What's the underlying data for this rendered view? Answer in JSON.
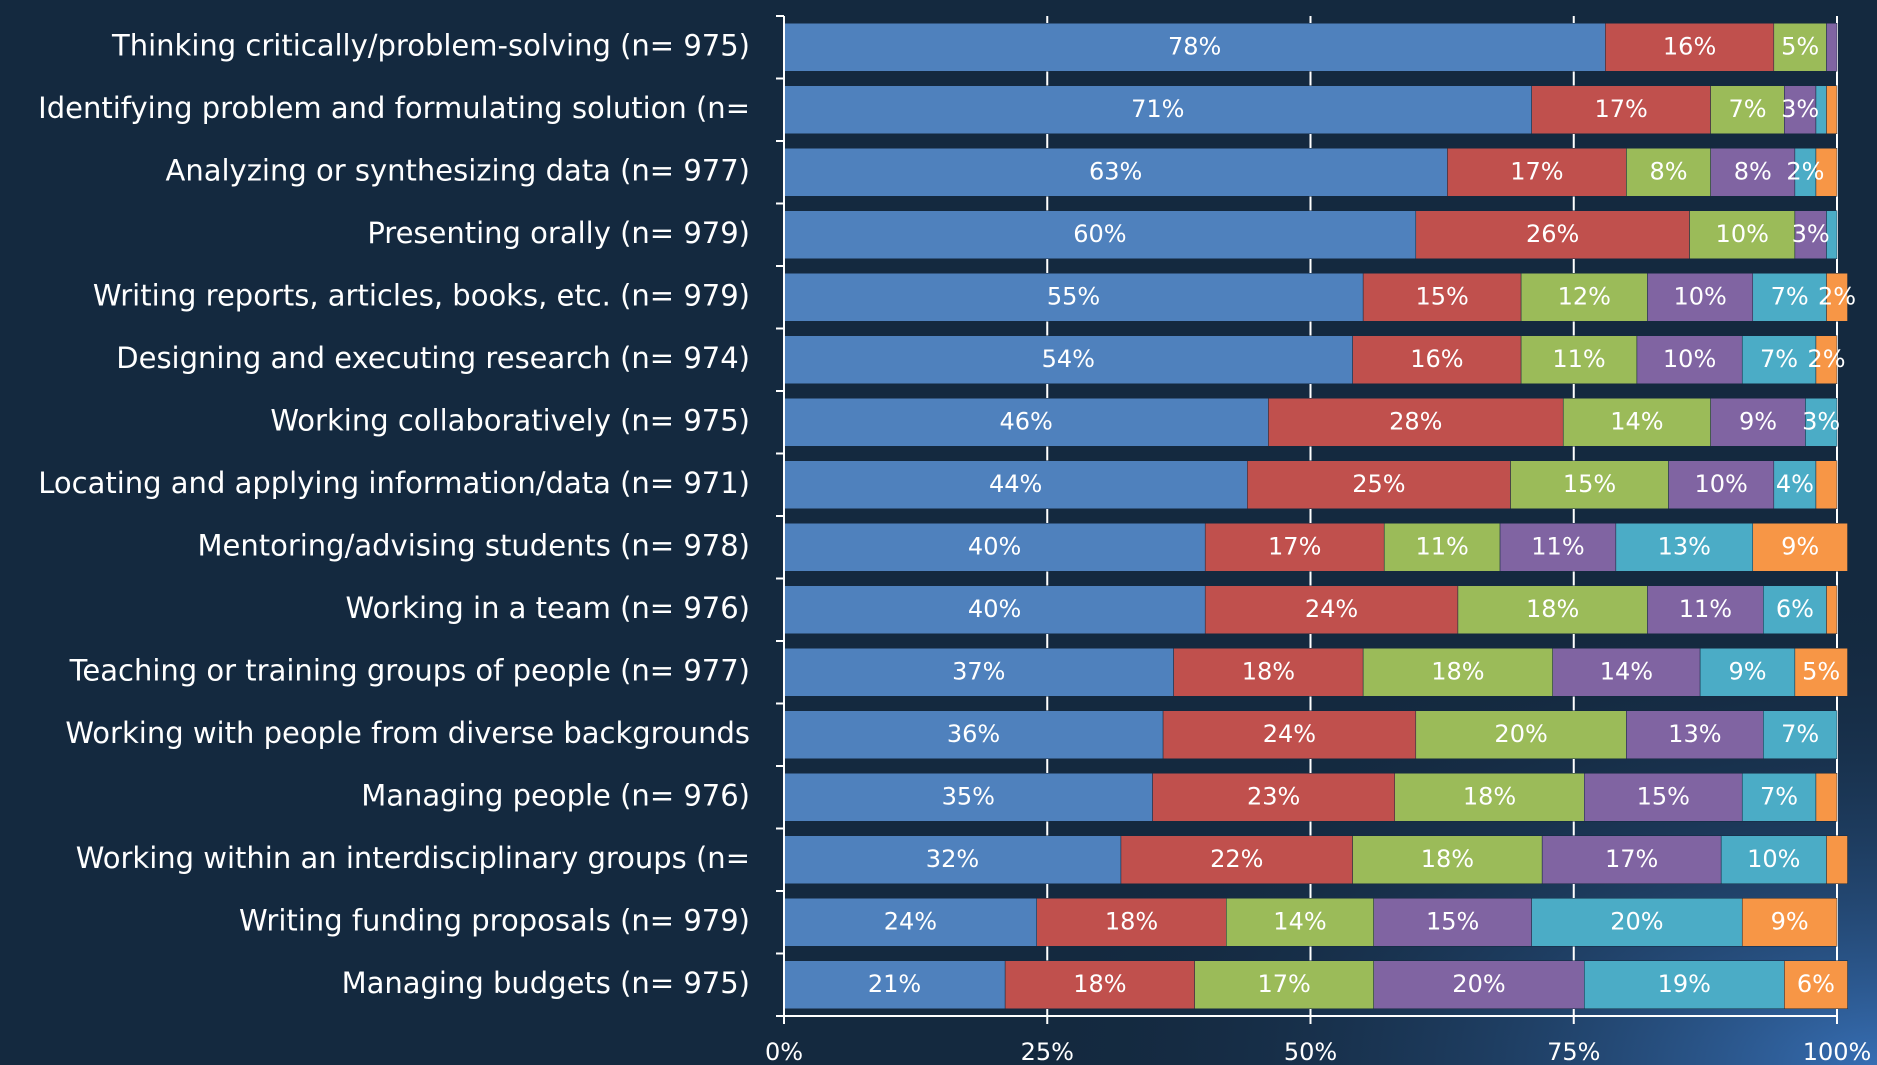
{
  "chart_data": {
    "type": "stacked-bar-horizontal",
    "categories": [
      "Thinking critically/problem-solving (n= 975)",
      "Identifying problem and formulating solution (n=",
      "Analyzing or synthesizing data (n= 977)",
      "Presenting orally (n= 979)",
      "Writing reports, articles, books, etc. (n= 979)",
      "Designing and executing research (n= 974)",
      "Working collaboratively (n= 975)",
      "Locating and applying information/data (n= 971)",
      "Mentoring/advising students (n= 978)",
      "Working in a team (n= 976)",
      "Teaching or training groups of people (n= 977)",
      "Working with people from diverse backgrounds",
      "Managing people (n= 976)",
      "Working within an interdisciplinary groups (n=",
      "Writing funding proposals (n= 979)",
      "Managing budgets (n= 975)"
    ],
    "series": [
      {
        "color": "#4f81bd",
        "values": [
          78,
          71,
          63,
          60,
          55,
          54,
          46,
          44,
          40,
          40,
          37,
          36,
          35,
          32,
          24,
          21
        ],
        "value_labels": [
          "78%",
          "71%",
          "63%",
          "60%",
          "55%",
          "54%",
          "46%",
          "44%",
          "40%",
          "40%",
          "37%",
          "36%",
          "35%",
          "32%",
          "24%",
          "21%"
        ]
      },
      {
        "color": "#c0504d",
        "values": [
          16,
          17,
          17,
          26,
          15,
          16,
          28,
          25,
          17,
          24,
          18,
          24,
          23,
          22,
          18,
          18
        ],
        "value_labels": [
          "16%",
          "17%",
          "17%",
          "26%",
          "15%",
          "16%",
          "28%",
          "25%",
          "17%",
          "24%",
          "18%",
          "24%",
          "23%",
          "22%",
          "18%",
          "18%"
        ]
      },
      {
        "color": "#9bbb59",
        "values": [
          5,
          7,
          8,
          10,
          12,
          11,
          14,
          15,
          11,
          18,
          18,
          20,
          18,
          18,
          14,
          17
        ],
        "value_labels": [
          "5%",
          "7%",
          "8%",
          "10%",
          "12%",
          "11%",
          "14%",
          "15%",
          "11%",
          "18%",
          "18%",
          "20%",
          "18%",
          "18%",
          "14%",
          "17%"
        ]
      },
      {
        "color": "#8064a2",
        "values": [
          1,
          3,
          8,
          3,
          10,
          10,
          9,
          10,
          11,
          11,
          14,
          13,
          15,
          17,
          15,
          20
        ],
        "value_labels": [
          null,
          "3%",
          "8%",
          "3%",
          "10%",
          "10%",
          "9%",
          "10%",
          "11%",
          "11%",
          "14%",
          "13%",
          "15%",
          "17%",
          "15%",
          "20%"
        ]
      },
      {
        "color": "#4bacc6",
        "values": [
          0,
          1,
          2,
          1,
          7,
          7,
          3,
          4,
          13,
          6,
          9,
          7,
          7,
          10,
          20,
          19
        ],
        "value_labels": [
          null,
          null,
          "2%",
          null,
          "7%",
          "7%",
          "3%",
          "4%",
          "13%",
          "6%",
          "9%",
          "7%",
          "7%",
          "10%",
          "20%",
          "19%"
        ]
      },
      {
        "color": "#f79646",
        "values": [
          0,
          1,
          2,
          0,
          2,
          2,
          0,
          2,
          9,
          1,
          5,
          0,
          2,
          2,
          9,
          6
        ],
        "value_labels": [
          null,
          null,
          null,
          null,
          "2%",
          "2%",
          null,
          null,
          "9%",
          null,
          "5%",
          null,
          null,
          null,
          "9%",
          "6%"
        ]
      }
    ],
    "xlim": [
      0,
      100
    ],
    "xticks": [
      {
        "value": 0,
        "label": "0%"
      },
      {
        "value": 25,
        "label": "25%"
      },
      {
        "value": 50,
        "label": "50%"
      },
      {
        "value": 75,
        "label": "75%"
      },
      {
        "value": 100,
        "label": "100%"
      }
    ],
    "grid": true
  }
}
